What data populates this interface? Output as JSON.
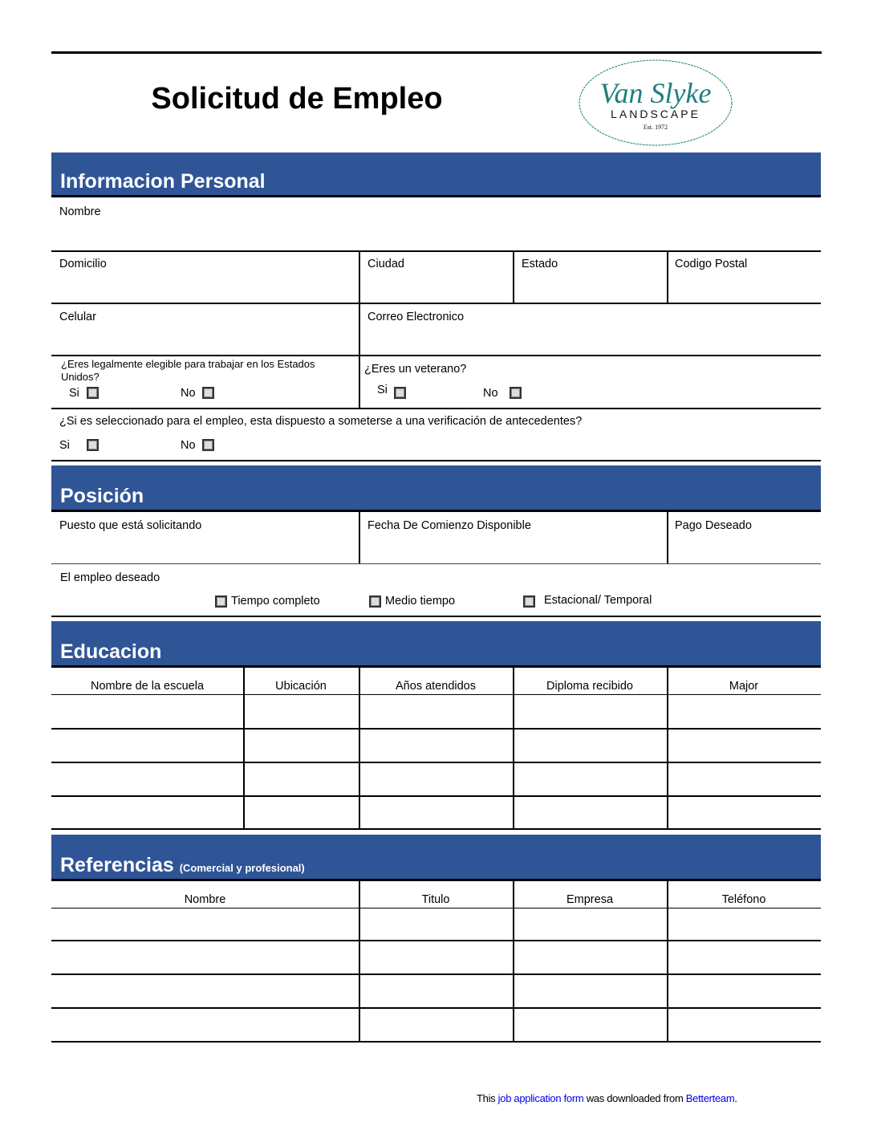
{
  "title": "Solicitud de Empleo",
  "logo": {
    "script": "Van Slyke",
    "name": "LANDSCAPE",
    "est": "Est. 1972",
    "color": "#1f7f7f"
  },
  "accent": "#2f5597",
  "personal": {
    "heading": "Informacion Personal",
    "nombre": "Nombre",
    "domicilio": "Domicilio",
    "ciudad": "Ciudad",
    "estado": "Estado",
    "codigo": "Codigo Postal",
    "celular": "Celular",
    "correo": "Correo Electronico",
    "eligible_q": "¿Eres legalmente elegible para trabajar en los Estados Unidos?",
    "veteran_q": "¿Eres un veterano?",
    "background_q": "¿Si es seleccionado para el empleo, esta dispuesto a someterse a una verificación de antecedentes?",
    "si": "Si",
    "no": "No"
  },
  "posicion": {
    "heading": "Posición",
    "puesto": "Puesto que está solicitando",
    "fecha": "Fecha De Comienzo Disponible",
    "pago": "Pago Deseado",
    "empleo": "El empleo deseado",
    "options": [
      "Tiempo completo",
      "Medio tiempo",
      "Estacional/ Temporal"
    ]
  },
  "educacion": {
    "heading": "Educacion",
    "columns": [
      "Nombre de la escuela",
      "Ubicación",
      "Años atendidos",
      "Diploma recibido",
      "Major"
    ]
  },
  "referencias": {
    "heading": "Referencias",
    "subheading": "(Comercial y profesional)",
    "columns": [
      "Nombre",
      "Titulo",
      "Empresa",
      "Teléfono"
    ]
  },
  "footer": {
    "pre": "This ",
    "link1": "job application form",
    "mid": " was downloaded from ",
    "link2": "Betterteam",
    "post": "."
  }
}
